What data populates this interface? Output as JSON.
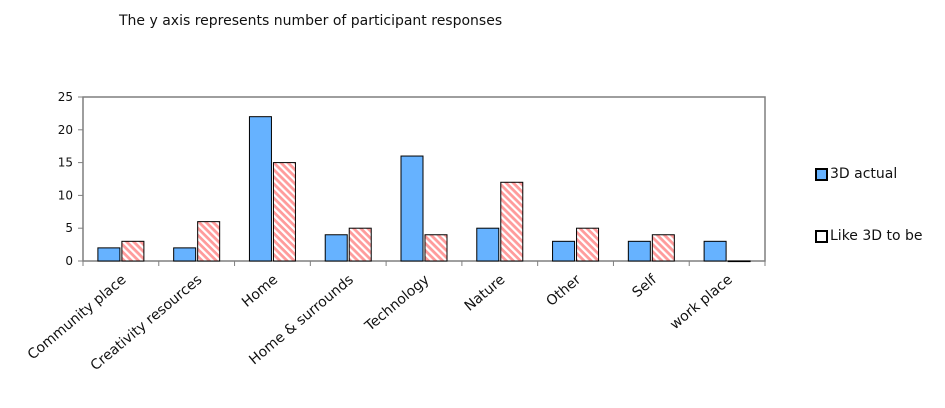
{
  "note": "The y axis represents number of participant responses",
  "colors": {
    "actual": "#66b2ff",
    "like": "#ff9b9b",
    "like_stripe": "#ffffff",
    "axis": "#7f7f7f"
  },
  "legend": {
    "items": [
      {
        "label": "3D actual"
      },
      {
        "label": "Like 3D to be"
      }
    ]
  },
  "chart_data": {
    "type": "bar",
    "categories": [
      "Community place",
      "Creativity resources",
      "Home",
      "Home & surrounds",
      "Technology",
      "Nature",
      "Other",
      "Self",
      "work place"
    ],
    "series": [
      {
        "name": "3D actual",
        "values": [
          2,
          2,
          22,
          4,
          16,
          5,
          3,
          3,
          3
        ]
      },
      {
        "name": "Like 3D to be",
        "values": [
          3,
          6,
          15,
          5,
          4,
          12,
          5,
          4,
          0
        ]
      }
    ],
    "yticks": [
      0,
      5,
      10,
      15,
      20,
      25
    ],
    "ylim": [
      0,
      25
    ],
    "grid": false,
    "legend_position": "right"
  }
}
